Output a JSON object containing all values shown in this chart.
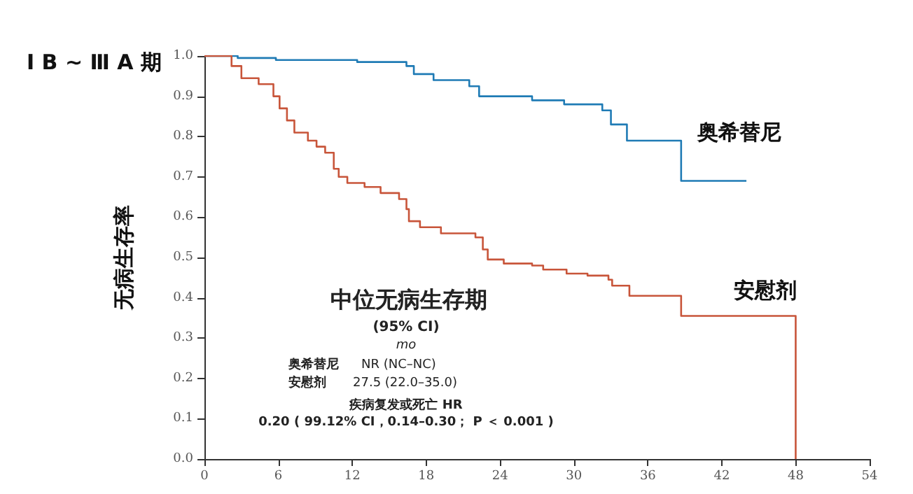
{
  "chart_data": {
    "type": "step",
    "title": "Ⅰ B ~ Ⅲ A 期",
    "ylabel": "无病生存率",
    "xlim": [
      0,
      54
    ],
    "xticks": [
      0,
      6,
      12,
      18,
      24,
      30,
      36,
      42,
      48,
      54
    ],
    "ylim": [
      0,
      1
    ],
    "yticks": [
      {
        "value": 0,
        "label": "0.0"
      },
      0.1,
      0.2,
      0.3,
      0.4,
      0.5,
      0.6,
      0.7,
      0.8,
      0.9,
      {
        "value": 1,
        "label": "1.0"
      }
    ],
    "grid": false,
    "legend": false,
    "series": [
      {
        "name": "奥希替尼",
        "color": "#1f7bb5",
        "x": [
          0,
          2.7,
          5.8,
          12.4,
          16.4,
          17,
          18.6,
          21.5,
          22.3,
          26.6,
          29.2,
          32.3,
          33,
          34.3,
          38.7,
          44
        ],
        "values": [
          1,
          0.995,
          0.99,
          0.985,
          0.975,
          0.955,
          0.94,
          0.925,
          0.9,
          0.89,
          0.88,
          0.865,
          0.83,
          0.79,
          0.69,
          0.69
        ]
      },
      {
        "name": "安慰剂",
        "color": "#c8553a",
        "x": [
          0,
          2.2,
          3,
          4.4,
          5.6,
          6.1,
          6.7,
          7.3,
          8.4,
          9.1,
          9.8,
          10.5,
          10.9,
          11.6,
          13,
          14.3,
          15.8,
          16.4,
          16.6,
          17.5,
          19.2,
          22,
          22.6,
          23,
          24.3,
          26.6,
          27.5,
          29.4,
          31.1,
          32.8,
          33.1,
          34.5,
          38.7,
          48,
          48
        ],
        "values": [
          1,
          0.975,
          0.945,
          0.93,
          0.9,
          0.87,
          0.84,
          0.81,
          0.79,
          0.775,
          0.76,
          0.72,
          0.7,
          0.685,
          0.675,
          0.66,
          0.645,
          0.62,
          0.59,
          0.575,
          0.56,
          0.55,
          0.52,
          0.495,
          0.485,
          0.48,
          0.47,
          0.46,
          0.455,
          0.445,
          0.43,
          0.405,
          0.355,
          0.355,
          0
        ]
      }
    ],
    "annotations": [
      "中位无病生存期",
      "(95% CI)",
      "mo",
      "奥希替尼",
      "NR (NC–NC)",
      "安慰剂",
      "27.5 (22.0–35.0)",
      "疾病复发或死亡 HR",
      "0.20 ( 99.12% CI，0.14–0.30； P ＜ 0.001 )"
    ]
  }
}
